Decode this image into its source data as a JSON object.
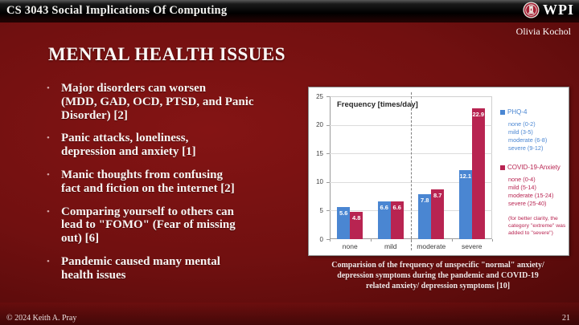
{
  "header": {
    "course_title": "CS 3043 Social Implications Of Computing",
    "logo_text": "WPI",
    "author": "Olivia Kochol"
  },
  "slide": {
    "title": "MENTAL HEALTH ISSUES",
    "bullet_glyph": "•",
    "bullets": [
      "Major disorders can worsen\n(MDD, GAD, OCD, PTSD, and Panic\nDisorder) [2]",
      "Panic attacks, loneliness,\ndepression and anxiety [1]",
      "Manic thoughts from confusing\nfact and fiction on the internet [2]",
      "Comparing yourself to others can\nlead to \"FOMO\" (Fear of missing\nout) [6]",
      "Pandemic caused many mental\nhealth issues"
    ]
  },
  "chart_caption": "Comparision of the frequency of unspecific \"normal\" anxiety/\ndepression symptoms during the pandemic and COVID-19\nrelated anxiety/ depression symptoms [10]",
  "footer": {
    "copyright": "© 2024 Keith A. Pray",
    "page_number": "21"
  },
  "chart_data": {
    "type": "bar",
    "ylabel_inside": "Frequency [times/day]",
    "categories": [
      "none",
      "mild",
      "moderate",
      "severe"
    ],
    "series": [
      {
        "name": "PHQ-4",
        "color": "#4a86d2",
        "values": [
          5.6,
          6.6,
          7.8,
          12.1
        ],
        "legend_items": [
          "none (0-2)",
          "mild (3-5)",
          "moderate (6-8)",
          "severe (9-12)"
        ]
      },
      {
        "name": "COVID-19-Anxiety",
        "color": "#b82451",
        "values": [
          4.8,
          6.6,
          8.7,
          22.9
        ],
        "legend_items": [
          "none (0-4)",
          "mild (5-14)",
          "moderate (15-24)",
          "severe (25-40)"
        ]
      }
    ],
    "note": "(for better clarity, the category \"extreme\" was added to \"severe\")",
    "ylim": [
      0,
      25
    ],
    "yticks": [
      0,
      5,
      10,
      15,
      20,
      25
    ],
    "grid": true,
    "legend_position": "right",
    "separator_after_category": "mild"
  }
}
